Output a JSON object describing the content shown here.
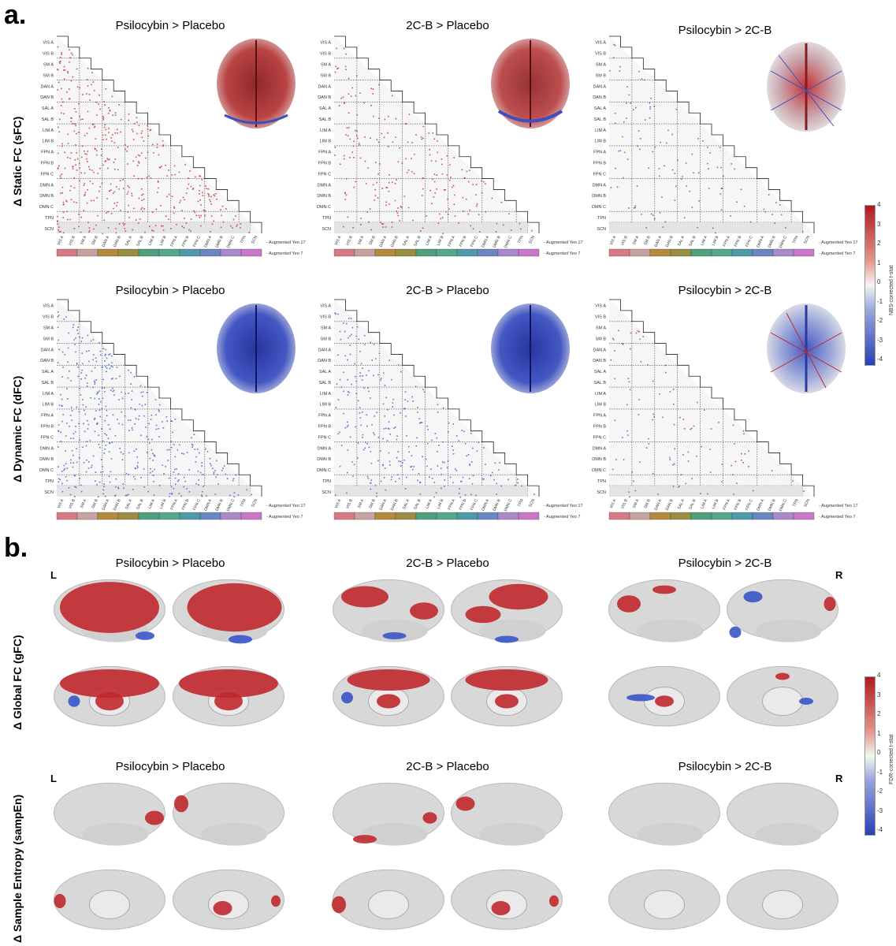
{
  "panels": {
    "a": {
      "letter": "a.",
      "rows": [
        {
          "title": "Δ Static FC (sFC)"
        },
        {
          "title": "Δ Dynamic FC (dFC)"
        }
      ],
      "columns": [
        "Psilocybin > Placebo",
        "2C-B > Placebo",
        "Psilocybin > 2C-B"
      ],
      "row_labels": [
        "VIS A",
        "VIS B",
        "SM A",
        "SM B",
        "DAN A",
        "DAN B",
        "SAL A",
        "SAL B",
        "LIM A",
        "LIM B",
        "FPN A",
        "FPN B",
        "FPN C",
        "DMN A",
        "DMN B",
        "DMN C",
        "TPN",
        "SCN"
      ],
      "col_labels": [
        "VIS A",
        "VIS B",
        "SM A",
        "SM B",
        "DAN A",
        "DAN B",
        "SAL A",
        "SAL B",
        "LIM A",
        "LIM B",
        "FPN A",
        "FPN B",
        "FPN C",
        "DMN A",
        "DMN B",
        "DMN C",
        "TPN",
        "SCN"
      ],
      "legend_17": "- Augmented Yeo 17",
      "legend_7": "- Augmented Yeo 7",
      "colorbar": {
        "label": "NBS-corrected t-stat",
        "ticks": [
          "4",
          "3",
          "2",
          "1",
          "0",
          "-1",
          "-2",
          "-3",
          "-4"
        ]
      }
    },
    "b": {
      "letter": "b.",
      "rows": [
        {
          "title": "Δ Global FC (gFC)"
        },
        {
          "title": "Δ Sample Entropy (sampEn)"
        }
      ],
      "columns": [
        "Psilocybin > Placebo",
        "2C-B > Placebo",
        "Psilocybin > 2C-B"
      ],
      "left_marker": "L",
      "right_marker": "R",
      "colorbar": {
        "label": "FDR-corrected t-stat",
        "ticks": [
          "4",
          "3",
          "2",
          "1",
          "0",
          "-1",
          "-2",
          "-3",
          "-4"
        ]
      }
    }
  },
  "colors": {
    "positive": "#c0282d",
    "negative": "#3a55c8",
    "network_strip": [
      "#d77a86",
      "#c4a3a0",
      "#b58a3c",
      "#9a8d45",
      "#4fa07b",
      "#56a78d",
      "#4f9aa8",
      "#6c86c4",
      "#a98ac9",
      "#c978c9"
    ]
  }
}
